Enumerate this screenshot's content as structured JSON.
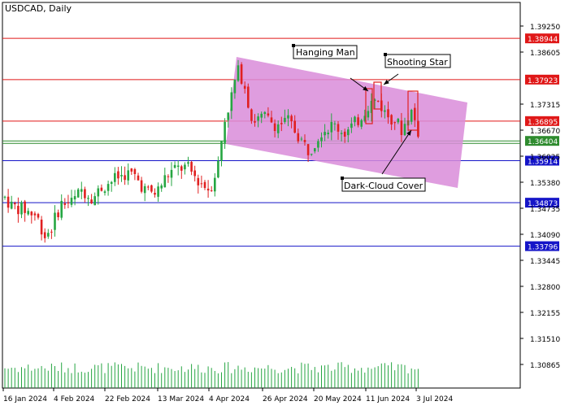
{
  "chart_data": {
    "type": "candlestick",
    "title": "USDCAD, Daily",
    "yaxis": {
      "ylim": [
        1.3027,
        1.3998
      ],
      "ticks": [
        {
          "value": 1.3925,
          "label": "1.39250"
        },
        {
          "value": 1.38605,
          "label": "1.38605"
        },
        {
          "value": 1.37315,
          "label": "1.37315"
        },
        {
          "value": 1.3667,
          "label": "1.36670"
        },
        {
          "value": 1.36025,
          "label": "1.36025"
        },
        {
          "value": 1.3538,
          "label": "1.35380"
        },
        {
          "value": 1.34735,
          "label": "1.34735"
        },
        {
          "value": 1.3409,
          "label": "1.34090"
        },
        {
          "value": 1.33445,
          "label": "1.33445"
        },
        {
          "value": 1.328,
          "label": "1.32800"
        },
        {
          "value": 1.32155,
          "label": "1.32155"
        },
        {
          "value": 1.3151,
          "label": "1.31510"
        },
        {
          "value": 1.30865,
          "label": "1.30865"
        }
      ]
    },
    "xaxis": {
      "labels": [
        "16 Jan 2024",
        "4 Feb 2024",
        "22 Feb 2024",
        "13 Mar 2024",
        "4 Apr 2024",
        "26 Apr 2024",
        "20 May 2024",
        "11 Jun 2024",
        "3 Jul 2024"
      ]
    },
    "horizontal_levels": [
      {
        "value": 1.38944,
        "label": "1.38944",
        "color": "#e01818"
      },
      {
        "value": 1.37923,
        "label": "1.37923",
        "color": "#e01818"
      },
      {
        "value": 1.36895,
        "label": "1.36895",
        "color": "#e01818"
      },
      {
        "value": 1.36404,
        "label": "1.36404",
        "color": "#2e8b2e"
      },
      {
        "value": 1.35914,
        "label": "1.35914",
        "color": "#1515c8"
      },
      {
        "value": 1.34873,
        "label": "1.34873",
        "color": "#1515c8"
      },
      {
        "value": 1.33796,
        "label": "1.33796",
        "color": "#1515c8"
      }
    ],
    "annotations": [
      "Hanging Man",
      "Shooting Star",
      "Dark-Cloud Cover"
    ],
    "colors": {
      "bull": "#26a642",
      "bear": "#e02020",
      "channel": "#d98cd9",
      "volume": "#26a642"
    }
  }
}
